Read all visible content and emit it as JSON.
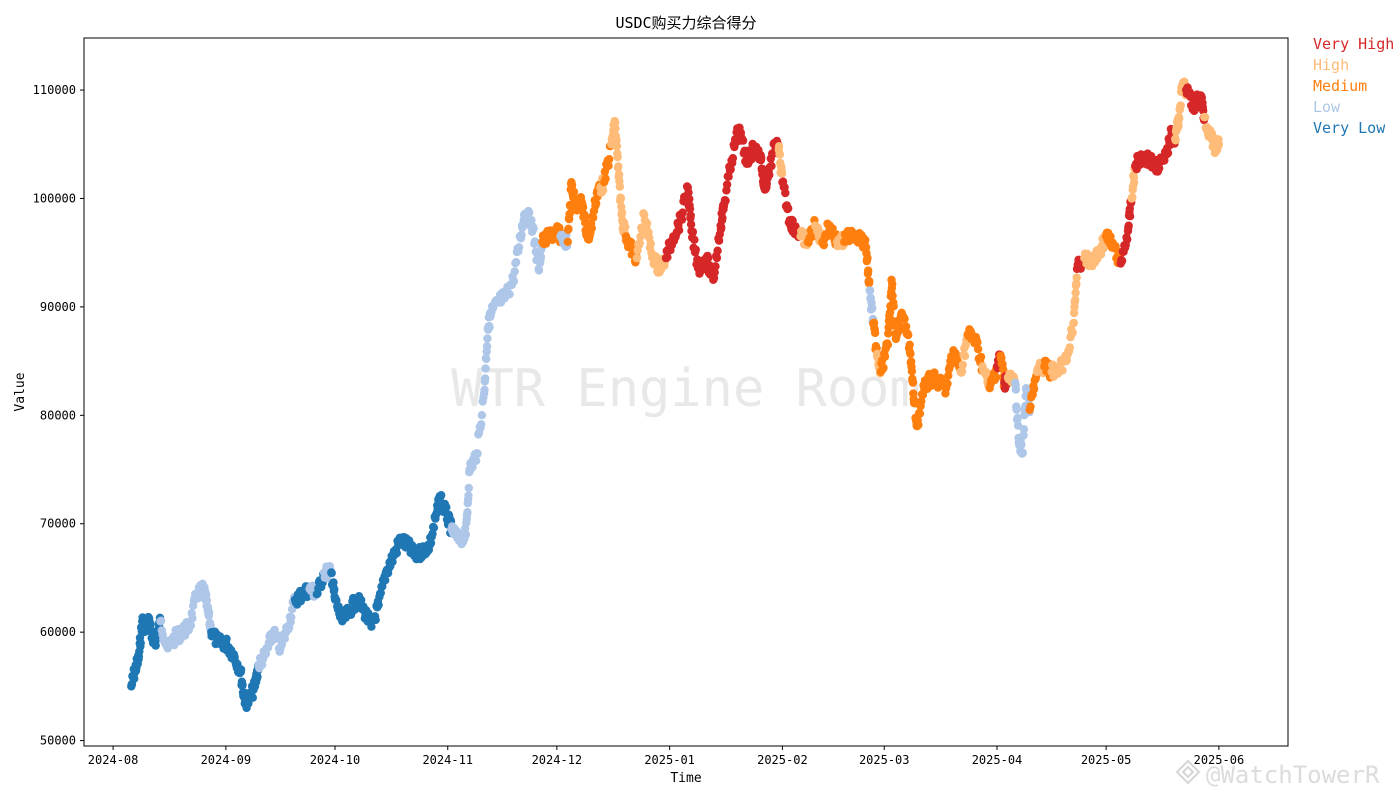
{
  "chart_data": {
    "type": "scatter",
    "title": "USDC购买力综合得分",
    "xlabel": "Time",
    "ylabel": "Value",
    "ylim": [
      49500,
      114800
    ],
    "xlim": [
      "2024-07-24",
      "2025-06-20"
    ],
    "x_ticks": [
      "2024-08",
      "2024-09",
      "2024-10",
      "2024-11",
      "2024-12",
      "2025-01",
      "2025-02",
      "2025-03",
      "2025-04",
      "2025-05",
      "2025-06"
    ],
    "y_ticks": [
      50000,
      60000,
      70000,
      80000,
      90000,
      100000,
      110000
    ],
    "grid": false,
    "legend_position": "outside-right",
    "series": [
      {
        "name": "Very High",
        "color": "#d62728"
      },
      {
        "name": "High",
        "color": "#ffbb78"
      },
      {
        "name": "Medium",
        "color": "#ff7f0e"
      },
      {
        "name": "Low",
        "color": "#aec7e8"
      },
      {
        "name": "Very Low",
        "color": "#1f77b4"
      }
    ],
    "points": [
      [
        "2024-08-06",
        55000,
        "Very Low"
      ],
      [
        "2024-08-07",
        56500,
        "Very Low"
      ],
      [
        "2024-08-08",
        57500,
        "Very Low"
      ],
      [
        "2024-08-09",
        61000,
        "Very Low"
      ],
      [
        "2024-08-10",
        60500,
        "Very Low"
      ],
      [
        "2024-08-11",
        61000,
        "Very Low"
      ],
      [
        "2024-08-12",
        59000,
        "Very Low"
      ],
      [
        "2024-08-13",
        59500,
        "Very Low"
      ],
      [
        "2024-08-14",
        61000,
        "Low"
      ],
      [
        "2024-08-16",
        58500,
        "Low"
      ],
      [
        "2024-08-18",
        59500,
        "Low"
      ],
      [
        "2024-08-20",
        60000,
        "Low"
      ],
      [
        "2024-08-22",
        60500,
        "Low"
      ],
      [
        "2024-08-24",
        63500,
        "Low"
      ],
      [
        "2024-08-26",
        64000,
        "Low"
      ],
      [
        "2024-08-27",
        62000,
        "Low"
      ],
      [
        "2024-08-28",
        60000,
        "Very Low"
      ],
      [
        "2024-08-30",
        59000,
        "Very Low"
      ],
      [
        "2024-09-01",
        59000,
        "Very Low"
      ],
      [
        "2024-09-03",
        58000,
        "Very Low"
      ],
      [
        "2024-09-05",
        56500,
        "Very Low"
      ],
      [
        "2024-09-06",
        54000,
        "Very Low"
      ],
      [
        "2024-09-07",
        53500,
        "Very Low"
      ],
      [
        "2024-09-09",
        55000,
        "Very Low"
      ],
      [
        "2024-09-10",
        57000,
        "Low"
      ],
      [
        "2024-09-12",
        58000,
        "Low"
      ],
      [
        "2024-09-14",
        60000,
        "Low"
      ],
      [
        "2024-09-16",
        58500,
        "Low"
      ],
      [
        "2024-09-18",
        60500,
        "Low"
      ],
      [
        "2024-09-20",
        63000,
        "Very Low"
      ],
      [
        "2024-09-22",
        63500,
        "Very Low"
      ],
      [
        "2024-09-24",
        64000,
        "Low"
      ],
      [
        "2024-09-26",
        63500,
        "Very Low"
      ],
      [
        "2024-09-28",
        65500,
        "Low"
      ],
      [
        "2024-09-30",
        65500,
        "Very Low"
      ],
      [
        "2024-10-01",
        63000,
        "Very Low"
      ],
      [
        "2024-10-03",
        61000,
        "Very Low"
      ],
      [
        "2024-10-05",
        62000,
        "Very Low"
      ],
      [
        "2024-10-07",
        63000,
        "Very Low"
      ],
      [
        "2024-10-09",
        62000,
        "Very Low"
      ],
      [
        "2024-10-11",
        60500,
        "Very Low"
      ],
      [
        "2024-10-13",
        62500,
        "Very Low"
      ],
      [
        "2024-10-15",
        65500,
        "Very Low"
      ],
      [
        "2024-10-17",
        67000,
        "Very Low"
      ],
      [
        "2024-10-19",
        68500,
        "Very Low"
      ],
      [
        "2024-10-21",
        68000,
        "Very Low"
      ],
      [
        "2024-10-23",
        67000,
        "Very Low"
      ],
      [
        "2024-10-25",
        67500,
        "Very Low"
      ],
      [
        "2024-10-27",
        68000,
        "Very Low"
      ],
      [
        "2024-10-29",
        71000,
        "Very Low"
      ],
      [
        "2024-10-30",
        72500,
        "Very Low"
      ],
      [
        "2024-11-01",
        70500,
        "Very Low"
      ],
      [
        "2024-11-02",
        69500,
        "Low"
      ],
      [
        "2024-11-04",
        68500,
        "Low"
      ],
      [
        "2024-11-06",
        69000,
        "Low"
      ],
      [
        "2024-11-07",
        75000,
        "Low"
      ],
      [
        "2024-11-09",
        76500,
        "Low"
      ],
      [
        "2024-11-11",
        82000,
        "Low"
      ],
      [
        "2024-11-12",
        88000,
        "Low"
      ],
      [
        "2024-11-13",
        89500,
        "Low"
      ],
      [
        "2024-11-15",
        90500,
        "Low"
      ],
      [
        "2024-11-17",
        91000,
        "Low"
      ],
      [
        "2024-11-19",
        92500,
        "Low"
      ],
      [
        "2024-11-21",
        96500,
        "Low"
      ],
      [
        "2024-11-22",
        98500,
        "Low"
      ],
      [
        "2024-11-24",
        98000,
        "Low"
      ],
      [
        "2024-11-26",
        93500,
        "Low"
      ],
      [
        "2024-11-27",
        96000,
        "Medium"
      ],
      [
        "2024-11-29",
        96500,
        "Medium"
      ],
      [
        "2024-12-01",
        97000,
        "Medium"
      ],
      [
        "2024-12-02",
        96500,
        "Low"
      ],
      [
        "2024-12-04",
        96000,
        "Medium"
      ],
      [
        "2024-12-05",
        101500,
        "Medium"
      ],
      [
        "2024-12-06",
        99500,
        "Medium"
      ],
      [
        "2024-12-08",
        99500,
        "Medium"
      ],
      [
        "2024-12-09",
        97000,
        "Medium"
      ],
      [
        "2024-12-10",
        96500,
        "Medium"
      ],
      [
        "2024-12-12",
        100500,
        "Medium"
      ],
      [
        "2024-12-13",
        101000,
        "High"
      ],
      [
        "2024-12-14",
        101500,
        "Medium"
      ],
      [
        "2024-12-16",
        105000,
        "High"
      ],
      [
        "2024-12-17",
        107000,
        "High"
      ],
      [
        "2024-12-18",
        102000,
        "High"
      ],
      [
        "2024-12-19",
        98000,
        "High"
      ],
      [
        "2024-12-20",
        96500,
        "Medium"
      ],
      [
        "2024-12-22",
        95000,
        "Medium"
      ],
      [
        "2024-12-23",
        94500,
        "High"
      ],
      [
        "2024-12-25",
        98500,
        "High"
      ],
      [
        "2024-12-27",
        95000,
        "High"
      ],
      [
        "2024-12-29",
        93500,
        "High"
      ],
      [
        "2024-12-31",
        94500,
        "Very High"
      ],
      [
        "2025-01-02",
        96500,
        "Very High"
      ],
      [
        "2025-01-04",
        98000,
        "Very High"
      ],
      [
        "2025-01-06",
        101000,
        "Very High"
      ],
      [
        "2025-01-07",
        97000,
        "Very High"
      ],
      [
        "2025-01-09",
        93500,
        "Very High"
      ],
      [
        "2025-01-11",
        94500,
        "Very High"
      ],
      [
        "2025-01-13",
        92500,
        "Very High"
      ],
      [
        "2025-01-15",
        97500,
        "Very High"
      ],
      [
        "2025-01-16",
        99500,
        "Very High"
      ],
      [
        "2025-01-18",
        103500,
        "Very High"
      ],
      [
        "2025-01-20",
        106500,
        "Very High"
      ],
      [
        "2025-01-22",
        103500,
        "Very High"
      ],
      [
        "2025-01-24",
        104500,
        "Very High"
      ],
      [
        "2025-01-26",
        104000,
        "Very High"
      ],
      [
        "2025-01-27",
        101000,
        "Very High"
      ],
      [
        "2025-01-28",
        102000,
        "Very High"
      ],
      [
        "2025-01-30",
        105000,
        "Very High"
      ],
      [
        "2025-01-31",
        104500,
        "High"
      ],
      [
        "2025-02-01",
        101500,
        "Very High"
      ],
      [
        "2025-02-03",
        98000,
        "Very High"
      ],
      [
        "2025-02-04",
        97500,
        "Very High"
      ],
      [
        "2025-02-06",
        96500,
        "High"
      ],
      [
        "2025-02-08",
        96000,
        "Medium"
      ],
      [
        "2025-02-10",
        97500,
        "High"
      ],
      [
        "2025-02-12",
        96000,
        "Medium"
      ],
      [
        "2025-02-14",
        97500,
        "Medium"
      ],
      [
        "2025-02-16",
        96000,
        "High"
      ],
      [
        "2025-02-18",
        96000,
        "Medium"
      ],
      [
        "2025-02-20",
        97000,
        "Medium"
      ],
      [
        "2025-02-22",
        96500,
        "Medium"
      ],
      [
        "2025-02-24",
        95500,
        "Medium"
      ],
      [
        "2025-02-25",
        91500,
        "Low"
      ],
      [
        "2025-02-26",
        88500,
        "Medium"
      ],
      [
        "2025-02-27",
        85500,
        "High"
      ],
      [
        "2025-02-28",
        84000,
        "Medium"
      ],
      [
        "2025-03-02",
        86500,
        "Medium"
      ],
      [
        "2025-03-03",
        92500,
        "Medium"
      ],
      [
        "2025-03-04",
        87500,
        "Medium"
      ],
      [
        "2025-03-06",
        89000,
        "Medium"
      ],
      [
        "2025-03-08",
        86500,
        "Medium"
      ],
      [
        "2025-03-09",
        82000,
        "Medium"
      ],
      [
        "2025-03-10",
        79000,
        "Medium"
      ],
      [
        "2025-03-12",
        82500,
        "Medium"
      ],
      [
        "2025-03-14",
        83500,
        "Medium"
      ],
      [
        "2025-03-16",
        83000,
        "Medium"
      ],
      [
        "2025-03-18",
        82500,
        "Medium"
      ],
      [
        "2025-03-20",
        86000,
        "Medium"
      ],
      [
        "2025-03-22",
        84000,
        "High"
      ],
      [
        "2025-03-24",
        87500,
        "Medium"
      ],
      [
        "2025-03-26",
        87000,
        "Medium"
      ],
      [
        "2025-03-28",
        84500,
        "High"
      ],
      [
        "2025-03-30",
        82500,
        "Medium"
      ],
      [
        "2025-04-01",
        84500,
        "Very High"
      ],
      [
        "2025-04-02",
        85500,
        "Medium"
      ],
      [
        "2025-04-03",
        83000,
        "Very High"
      ],
      [
        "2025-04-04",
        83500,
        "High"
      ],
      [
        "2025-04-06",
        83000,
        "Low"
      ],
      [
        "2025-04-07",
        77500,
        "Low"
      ],
      [
        "2025-04-08",
        76500,
        "Low"
      ],
      [
        "2025-04-09",
        82500,
        "Low"
      ],
      [
        "2025-04-10",
        80500,
        "Medium"
      ],
      [
        "2025-04-12",
        84000,
        "High"
      ],
      [
        "2025-04-14",
        84500,
        "Medium"
      ],
      [
        "2025-04-16",
        84000,
        "High"
      ],
      [
        "2025-04-18",
        84500,
        "High"
      ],
      [
        "2025-04-20",
        85000,
        "High"
      ],
      [
        "2025-04-22",
        88500,
        "High"
      ],
      [
        "2025-04-23",
        93500,
        "Very High"
      ],
      [
        "2025-04-25",
        94500,
        "High"
      ],
      [
        "2025-04-27",
        94000,
        "High"
      ],
      [
        "2025-04-29",
        95000,
        "High"
      ],
      [
        "2025-05-01",
        96500,
        "Medium"
      ],
      [
        "2025-05-03",
        95500,
        "Medium"
      ],
      [
        "2025-05-05",
        94000,
        "Very High"
      ],
      [
        "2025-05-07",
        97000,
        "Very High"
      ],
      [
        "2025-05-08",
        100000,
        "High"
      ],
      [
        "2025-05-09",
        103000,
        "Very High"
      ],
      [
        "2025-05-11",
        104000,
        "Very High"
      ],
      [
        "2025-05-13",
        103500,
        "Very High"
      ],
      [
        "2025-05-15",
        103000,
        "Very High"
      ],
      [
        "2025-05-17",
        103500,
        "Very High"
      ],
      [
        "2025-05-19",
        106000,
        "Very High"
      ],
      [
        "2025-05-20",
        105500,
        "High"
      ],
      [
        "2025-05-21",
        107500,
        "High"
      ],
      [
        "2025-05-22",
        110500,
        "High"
      ],
      [
        "2025-05-23",
        110000,
        "Very High"
      ],
      [
        "2025-05-25",
        108500,
        "Very High"
      ],
      [
        "2025-05-27",
        109500,
        "Very High"
      ],
      [
        "2025-05-28",
        107500,
        "High"
      ],
      [
        "2025-05-30",
        105500,
        "High"
      ],
      [
        "2025-05-31",
        104500,
        "High"
      ],
      [
        "2025-06-01",
        105000,
        "High"
      ]
    ]
  },
  "watermark": "WTR Engine Room",
  "corner_mark": "@WatchTowerR"
}
